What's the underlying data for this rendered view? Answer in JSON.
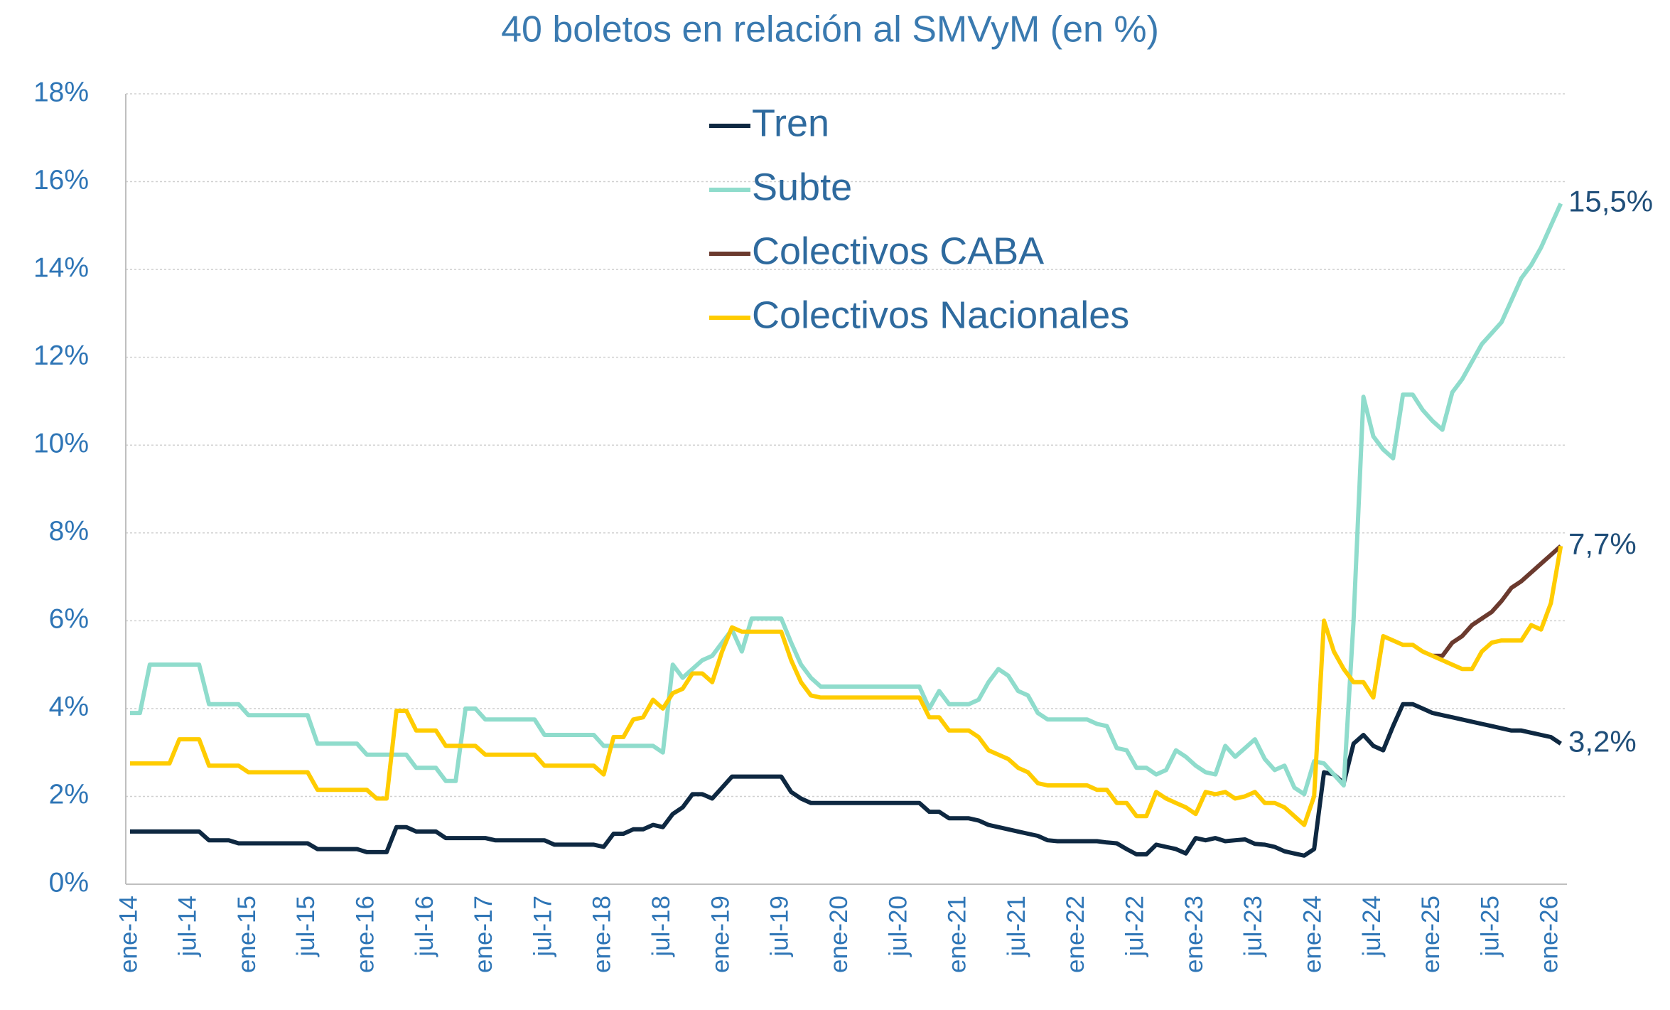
{
  "chart_data": {
    "type": "line",
    "title": "40 boletos en relación al SMVyM (en %)",
    "categories": [
      "ene-14",
      null,
      null,
      null,
      null,
      null,
      "jul-14",
      null,
      null,
      null,
      null,
      null,
      "ene-15",
      null,
      null,
      null,
      null,
      null,
      "jul-15",
      null,
      null,
      null,
      null,
      null,
      "ene-16",
      null,
      null,
      null,
      null,
      null,
      "jul-16",
      null,
      null,
      null,
      null,
      null,
      "ene-17",
      null,
      null,
      null,
      null,
      null,
      "jul-17",
      null,
      null,
      null,
      null,
      null,
      "ene-18",
      null,
      null,
      null,
      null,
      null,
      "jul-18",
      null,
      null,
      null,
      null,
      null,
      "ene-19",
      null,
      null,
      null,
      null,
      null,
      "jul-19",
      null,
      null,
      null,
      null,
      null,
      "ene-20",
      null,
      null,
      null,
      null,
      null,
      "jul-20",
      null,
      null,
      null,
      null,
      null,
      "ene-21",
      null,
      null,
      null,
      null,
      null,
      "jul-21",
      null,
      null,
      null,
      null,
      null,
      "ene-22",
      null,
      null,
      null,
      null,
      null,
      "jul-22",
      null,
      null,
      null,
      null,
      null,
      "ene-23",
      null,
      null,
      null,
      null,
      null,
      "jul-23",
      null,
      null,
      null,
      null,
      null,
      "ene-24",
      null,
      null,
      null,
      null,
      null,
      "jul-24",
      null,
      null,
      null,
      null,
      null,
      "ene-25",
      null,
      null,
      null,
      null,
      null,
      "jul-25",
      null,
      null,
      null,
      null,
      null,
      "ene-26",
      null
    ],
    "series": [
      {
        "name": "Tren",
        "color": "#0e2841",
        "end_label": "3,2%",
        "values": [
          1.2,
          1.2,
          1.2,
          1.2,
          1.2,
          1.2,
          1.2,
          1.2,
          1.0,
          1.0,
          1.0,
          0.93,
          0.93,
          0.93,
          0.93,
          0.93,
          0.93,
          0.93,
          0.93,
          0.8,
          0.8,
          0.8,
          0.8,
          0.8,
          0.73,
          0.73,
          0.73,
          1.3,
          1.3,
          1.2,
          1.2,
          1.2,
          1.05,
          1.05,
          1.05,
          1.05,
          1.05,
          1.0,
          1.0,
          1.0,
          1.0,
          1.0,
          1.0,
          0.9,
          0.9,
          0.9,
          0.9,
          0.9,
          0.85,
          1.15,
          1.15,
          1.25,
          1.25,
          1.35,
          1.3,
          1.6,
          1.75,
          2.05,
          2.05,
          1.95,
          2.2,
          2.45,
          2.45,
          2.45,
          2.45,
          2.45,
          2.45,
          2.1,
          1.95,
          1.85,
          1.85,
          1.85,
          1.85,
          1.85,
          1.85,
          1.85,
          1.85,
          1.85,
          1.85,
          1.85,
          1.85,
          1.65,
          1.65,
          1.5,
          1.5,
          1.5,
          1.45,
          1.35,
          1.3,
          1.25,
          1.2,
          1.15,
          1.1,
          1.0,
          0.98,
          0.98,
          0.98,
          0.98,
          0.98,
          0.95,
          0.93,
          0.8,
          0.68,
          0.68,
          0.9,
          0.85,
          0.8,
          0.7,
          1.05,
          1.0,
          1.05,
          0.98,
          1.0,
          1.02,
          0.92,
          0.9,
          0.85,
          0.75,
          0.7,
          0.65,
          0.8,
          2.55,
          2.5,
          2.3,
          3.2,
          3.4,
          3.15,
          3.05,
          3.6,
          4.1,
          4.1,
          4.0,
          3.9,
          3.85,
          3.8,
          3.75,
          3.7,
          3.65,
          3.6,
          3.55,
          3.5,
          3.5,
          3.45,
          3.4,
          3.35,
          3.2
        ]
      },
      {
        "name": "Subte",
        "color": "#8fdccc",
        "end_label": "15,5%",
        "values": [
          3.9,
          3.9,
          5.0,
          5.0,
          5.0,
          5.0,
          5.0,
          5.0,
          4.1,
          4.1,
          4.1,
          4.1,
          3.85,
          3.85,
          3.85,
          3.85,
          3.85,
          3.85,
          3.85,
          3.2,
          3.2,
          3.2,
          3.2,
          3.2,
          2.95,
          2.95,
          2.95,
          2.95,
          2.95,
          2.65,
          2.65,
          2.65,
          2.35,
          2.35,
          4.0,
          4.0,
          3.75,
          3.75,
          3.75,
          3.75,
          3.75,
          3.75,
          3.4,
          3.4,
          3.4,
          3.4,
          3.4,
          3.4,
          3.15,
          3.15,
          3.15,
          3.15,
          3.15,
          3.15,
          3.0,
          5.0,
          4.7,
          4.9,
          5.1,
          5.2,
          5.5,
          5.8,
          5.3,
          6.05,
          6.05,
          6.05,
          6.05,
          5.5,
          5.0,
          4.7,
          4.5,
          4.5,
          4.5,
          4.5,
          4.5,
          4.5,
          4.5,
          4.5,
          4.5,
          4.5,
          4.5,
          4.0,
          4.4,
          4.1,
          4.1,
          4.1,
          4.2,
          4.6,
          4.9,
          4.75,
          4.4,
          4.3,
          3.9,
          3.75,
          3.75,
          3.75,
          3.75,
          3.75,
          3.65,
          3.6,
          3.1,
          3.05,
          2.65,
          2.65,
          2.5,
          2.6,
          3.05,
          2.9,
          2.7,
          2.55,
          2.5,
          3.15,
          2.9,
          3.1,
          3.3,
          2.85,
          2.6,
          2.7,
          2.2,
          2.05,
          2.8,
          2.75,
          2.5,
          2.25,
          6.0,
          11.1,
          10.2,
          9.9,
          9.7,
          11.15,
          11.15,
          10.8,
          10.55,
          10.35,
          11.2,
          11.5,
          11.9,
          12.3,
          12.55,
          12.8,
          13.3,
          13.8,
          14.1,
          14.5,
          15.0,
          15.5
        ]
      },
      {
        "name": "Colectivos CABA",
        "color": "#6b3a2e",
        "end_label": "7,7%",
        "values": [
          null,
          null,
          null,
          null,
          null,
          null,
          null,
          null,
          null,
          null,
          null,
          null,
          null,
          null,
          null,
          null,
          null,
          null,
          null,
          null,
          null,
          null,
          null,
          null,
          null,
          null,
          null,
          null,
          null,
          null,
          null,
          null,
          null,
          null,
          null,
          null,
          null,
          null,
          null,
          null,
          null,
          null,
          null,
          null,
          null,
          null,
          null,
          null,
          null,
          null,
          null,
          null,
          null,
          null,
          null,
          null,
          null,
          null,
          null,
          null,
          null,
          null,
          null,
          null,
          null,
          null,
          null,
          null,
          null,
          null,
          null,
          null,
          null,
          null,
          null,
          null,
          null,
          null,
          null,
          null,
          null,
          null,
          null,
          null,
          null,
          null,
          null,
          null,
          null,
          null,
          null,
          null,
          null,
          null,
          null,
          null,
          null,
          null,
          null,
          null,
          null,
          null,
          null,
          null,
          null,
          null,
          null,
          null,
          null,
          null,
          null,
          null,
          null,
          null,
          null,
          null,
          null,
          null,
          null,
          null,
          null,
          null,
          null,
          null,
          null,
          null,
          null,
          null,
          null,
          null,
          null,
          null,
          5.2,
          5.2,
          5.5,
          5.65,
          5.9,
          6.05,
          6.2,
          6.45,
          6.75,
          6.9,
          7.1,
          7.3,
          7.5,
          7.7
        ]
      },
      {
        "name": "Colectivos Nacionales",
        "color": "#ffcc00",
        "values": [
          2.75,
          2.75,
          2.75,
          2.75,
          2.75,
          3.3,
          3.3,
          3.3,
          2.7,
          2.7,
          2.7,
          2.7,
          2.55,
          2.55,
          2.55,
          2.55,
          2.55,
          2.55,
          2.55,
          2.15,
          2.15,
          2.15,
          2.15,
          2.15,
          2.15,
          1.95,
          1.95,
          3.95,
          3.95,
          3.5,
          3.5,
          3.5,
          3.15,
          3.15,
          3.15,
          3.15,
          2.95,
          2.95,
          2.95,
          2.95,
          2.95,
          2.95,
          2.7,
          2.7,
          2.7,
          2.7,
          2.7,
          2.7,
          2.5,
          3.35,
          3.35,
          3.75,
          3.8,
          4.2,
          4.0,
          4.35,
          4.45,
          4.8,
          4.8,
          4.6,
          5.3,
          5.85,
          5.75,
          5.75,
          5.75,
          5.75,
          5.75,
          5.1,
          4.6,
          4.3,
          4.25,
          4.25,
          4.25,
          4.25,
          4.25,
          4.25,
          4.25,
          4.25,
          4.25,
          4.25,
          4.25,
          3.8,
          3.8,
          3.5,
          3.5,
          3.5,
          3.35,
          3.05,
          2.95,
          2.85,
          2.65,
          2.55,
          2.3,
          2.25,
          2.25,
          2.25,
          2.25,
          2.25,
          2.15,
          2.15,
          1.85,
          1.85,
          1.55,
          1.55,
          2.1,
          1.95,
          1.85,
          1.75,
          1.6,
          2.1,
          2.05,
          2.1,
          1.95,
          2.0,
          2.1,
          1.85,
          1.85,
          1.75,
          1.55,
          1.35,
          2.0,
          6.0,
          5.3,
          4.9,
          4.6,
          4.6,
          4.25,
          5.65,
          5.55,
          5.45,
          5.45,
          5.3,
          5.2,
          5.1,
          5.0,
          4.9,
          4.9,
          5.3,
          5.5,
          5.55,
          5.55,
          5.55,
          5.9,
          5.8,
          6.4,
          7.7
        ]
      }
    ],
    "ylim": [
      0,
      18
    ],
    "yticks": [
      {
        "value": 0,
        "label": "0%"
      },
      {
        "value": 2,
        "label": "2%"
      },
      {
        "value": 4,
        "label": "4%"
      },
      {
        "value": 6,
        "label": "6%"
      },
      {
        "value": 8,
        "label": "8%"
      },
      {
        "value": 10,
        "label": "10%"
      },
      {
        "value": 12,
        "label": "12%"
      },
      {
        "value": 14,
        "label": "14%"
      },
      {
        "value": 16,
        "label": "16%"
      },
      {
        "value": 18,
        "label": "18%"
      }
    ],
    "grid": true,
    "legend": "top"
  }
}
